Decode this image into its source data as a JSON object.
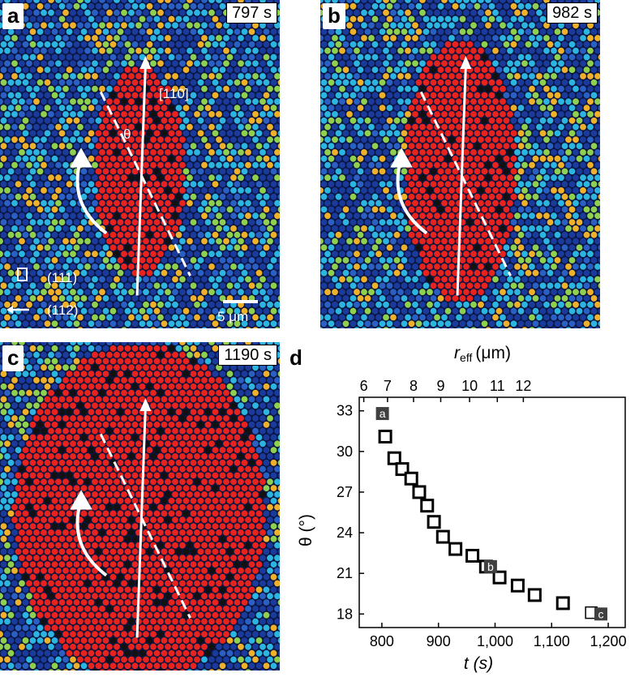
{
  "panels": {
    "a": {
      "label": "a",
      "time": "797 s",
      "cluster_ellipse": {
        "rx": 0.16,
        "ry": 0.32
      }
    },
    "b": {
      "label": "b",
      "time": "982 s",
      "cluster_ellipse": {
        "rx": 0.2,
        "ry": 0.4
      }
    },
    "c": {
      "label": "c",
      "time": "1190 s",
      "cluster_ellipse": {
        "rx": 0.45,
        "ry": 0.52
      }
    }
  },
  "annotations": {
    "theta": "θ",
    "dir_110": "[110]",
    "plane_111": "(111)",
    "dir_112": "(112)",
    "scale_bar": "5 μm"
  },
  "colors": {
    "crystal_low": "#1a3a9c",
    "crystal_mid": "#2bb5e0",
    "crystal_high": "#8fd14f",
    "melt": "#e8231d",
    "marker": "#000000",
    "label_box": "#404040"
  },
  "chart_data": {
    "panel_label": "d",
    "type": "scatter",
    "xlabel": "t (s)",
    "x2label_main": "r",
    "x2label_sub": "eff",
    "x2label_unit": "(μm)",
    "ylabel": "θ (°)",
    "xlim": [
      760,
      1230
    ],
    "ylim": [
      17,
      34
    ],
    "xticks": [
      800,
      900,
      1000,
      1100,
      1200
    ],
    "xtick_labels": [
      "800",
      "900",
      "1,000",
      "1,100",
      "1,200"
    ],
    "yticks": [
      18,
      21,
      24,
      27,
      30,
      33
    ],
    "x2ticks": [
      6,
      7,
      8,
      9,
      10,
      11,
      12
    ],
    "x2tick_pos": [
      768,
      810,
      856,
      904,
      955,
      1004,
      1050
    ],
    "series": [
      {
        "name": "open squares",
        "x": [
          806,
          822,
          836,
          852,
          866,
          880,
          892,
          908,
          930,
          960,
          984,
          1008,
          1040,
          1070,
          1120,
          1170
        ],
        "y": [
          31.1,
          29.5,
          28.7,
          28.0,
          27.0,
          26.0,
          24.8,
          23.7,
          22.8,
          22.3,
          21.5,
          20.7,
          20.1,
          19.4,
          18.8,
          18.1
        ]
      }
    ],
    "point_labels": [
      {
        "text": "a",
        "x": 801,
        "y": 32.8
      },
      {
        "text": "b",
        "x": 992,
        "y": 21.5
      },
      {
        "text": "c",
        "x": 1187,
        "y": 18.0
      }
    ]
  }
}
